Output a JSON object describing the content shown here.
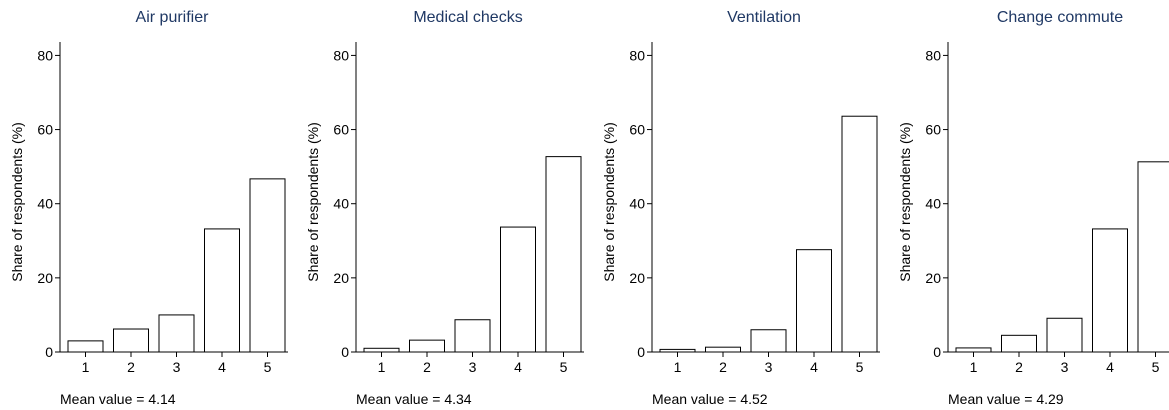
{
  "chart_data": [
    {
      "type": "bar",
      "title": "Air purifier",
      "categories": [
        "1",
        "2",
        "3",
        "4",
        "5"
      ],
      "values": [
        3.0,
        6.2,
        10.0,
        33.2,
        46.7
      ],
      "ylabel": "Share of respondents (%)",
      "xlabel": "",
      "ylim": [
        0,
        82
      ],
      "yticks": [
        "0",
        "20",
        "40",
        "60",
        "80"
      ],
      "note": "Mean value = 4.14",
      "grid": false
    },
    {
      "type": "bar",
      "title": "Medical checks",
      "categories": [
        "1",
        "2",
        "3",
        "4",
        "5"
      ],
      "values": [
        1.0,
        3.2,
        8.7,
        33.7,
        52.7
      ],
      "ylabel": "Share of respondents (%)",
      "xlabel": "",
      "ylim": [
        0,
        82
      ],
      "yticks": [
        "0",
        "20",
        "40",
        "60",
        "80"
      ],
      "note": "Mean value = 4.34",
      "grid": false
    },
    {
      "type": "bar",
      "title": "Ventilation",
      "categories": [
        "1",
        "2",
        "3",
        "4",
        "5"
      ],
      "values": [
        0.7,
        1.3,
        6.0,
        27.6,
        63.6
      ],
      "ylabel": "Share of respondents (%)",
      "xlabel": "",
      "ylim": [
        0,
        82
      ],
      "yticks": [
        "0",
        "20",
        "40",
        "60",
        "80"
      ],
      "note": "Mean value = 4.52",
      "grid": false
    },
    {
      "type": "bar",
      "title": "Change commute",
      "categories": [
        "1",
        "2",
        "3",
        "4",
        "5"
      ],
      "values": [
        1.1,
        4.5,
        9.1,
        33.2,
        51.3
      ],
      "ylabel": "Share of respondents (%)",
      "xlabel": "",
      "ylim": [
        0,
        82
      ],
      "yticks": [
        "0",
        "20",
        "40",
        "60",
        "80"
      ],
      "note": "Mean value = 4.29",
      "grid": false
    }
  ],
  "colors": {
    "title": "#1f3864",
    "bar_fill": "#ffffff",
    "bar_stroke": "#000000"
  }
}
